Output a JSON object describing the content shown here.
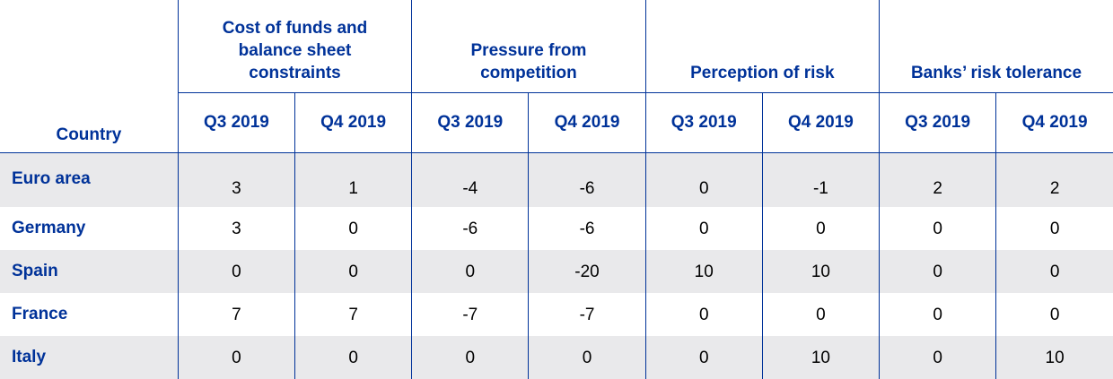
{
  "header": {
    "country_label": "Country",
    "groups": [
      "Cost of funds and balance sheet constraints",
      "Pressure from competition",
      "Perception of risk",
      "Banks’ risk tolerance"
    ],
    "periods": [
      "Q3 2019",
      "Q4 2019",
      "Q3 2019",
      "Q4 2019",
      "Q3 2019",
      "Q4 2019",
      "Q3 2019",
      "Q4 2019"
    ]
  },
  "rows": [
    {
      "country": "Euro area",
      "values": [
        "3",
        "1",
        "-4",
        "-6",
        "0",
        "-1",
        "2",
        "2"
      ]
    },
    {
      "country": "Germany",
      "values": [
        "3",
        "0",
        "-6",
        "-6",
        "0",
        "0",
        "0",
        "0"
      ]
    },
    {
      "country": "Spain",
      "values": [
        "0",
        "0",
        "0",
        "-20",
        "10",
        "10",
        "0",
        "0"
      ]
    },
    {
      "country": "France",
      "values": [
        "7",
        "7",
        "-7",
        "-7",
        "0",
        "0",
        "0",
        "0"
      ]
    },
    {
      "country": "Italy",
      "values": [
        "0",
        "0",
        "0",
        "0",
        "0",
        "10",
        "0",
        "10"
      ]
    }
  ],
  "colors": {
    "header_text": "#003299",
    "rule": "#003299",
    "band": "#e9e9eb",
    "value_text": "#000000"
  }
}
